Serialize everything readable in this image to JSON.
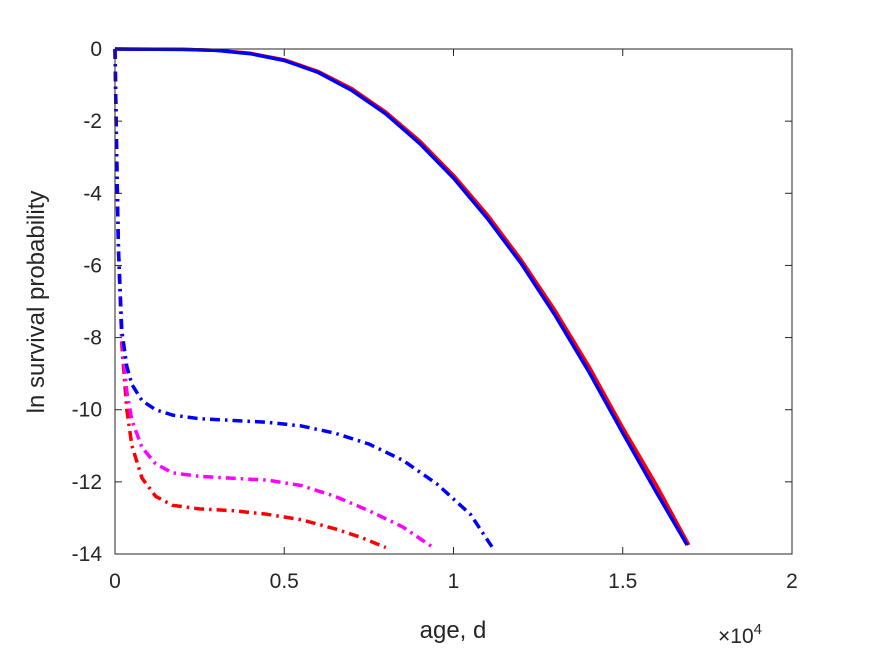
{
  "chart_data": {
    "type": "line",
    "xlabel": "age, d",
    "ylabel": "ln survival probability",
    "x_multiplier": {
      "base": "×10",
      "exponent": "4"
    },
    "xlim": [
      0,
      20000
    ],
    "ylim": [
      -14,
      0
    ],
    "xticks": [
      0,
      5000,
      10000,
      15000,
      20000
    ],
    "xtick_labels": [
      "0",
      "0.5",
      "1",
      "1.5",
      "2"
    ],
    "yticks": [
      0,
      -2,
      -4,
      -6,
      -8,
      -10,
      -12,
      -14
    ],
    "ytick_labels": [
      "0",
      "-2",
      "-4",
      "-6",
      "-8",
      "-10",
      "-12",
      "-14"
    ],
    "grid": false,
    "series": [
      {
        "color": "#ff0000",
        "style": "solid",
        "points": [
          [
            0,
            0
          ],
          [
            2000,
            -0.01
          ],
          [
            3000,
            -0.04
          ],
          [
            4000,
            -0.12
          ],
          [
            5000,
            -0.3
          ],
          [
            6000,
            -0.62
          ],
          [
            7000,
            -1.1
          ],
          [
            8000,
            -1.75
          ],
          [
            9000,
            -2.55
          ],
          [
            10000,
            -3.5
          ],
          [
            11000,
            -4.6
          ],
          [
            12000,
            -5.85
          ],
          [
            13000,
            -7.25
          ],
          [
            14000,
            -8.8
          ],
          [
            15000,
            -10.5
          ],
          [
            16000,
            -12.1
          ],
          [
            16950,
            -13.75
          ]
        ]
      },
      {
        "color": "#0000ff",
        "style": "solid",
        "points": [
          [
            0,
            0
          ],
          [
            2000,
            -0.01
          ],
          [
            3000,
            -0.04
          ],
          [
            4000,
            -0.13
          ],
          [
            5000,
            -0.32
          ],
          [
            6000,
            -0.65
          ],
          [
            7000,
            -1.15
          ],
          [
            8000,
            -1.8
          ],
          [
            9000,
            -2.62
          ],
          [
            10000,
            -3.58
          ],
          [
            11000,
            -4.7
          ],
          [
            12000,
            -5.95
          ],
          [
            13000,
            -7.38
          ],
          [
            14000,
            -8.95
          ],
          [
            15000,
            -10.65
          ],
          [
            16000,
            -12.3
          ],
          [
            16900,
            -13.75
          ]
        ]
      },
      {
        "color": "#ff0000",
        "style": "dashdot",
        "points": [
          [
            0,
            0
          ],
          [
            50,
            -3
          ],
          [
            100,
            -5.5
          ],
          [
            200,
            -8.2
          ],
          [
            350,
            -10
          ],
          [
            500,
            -11
          ],
          [
            800,
            -11.9
          ],
          [
            1200,
            -12.4
          ],
          [
            1700,
            -12.65
          ],
          [
            2500,
            -12.75
          ],
          [
            3500,
            -12.8
          ],
          [
            4500,
            -12.9
          ],
          [
            5500,
            -13.05
          ],
          [
            6500,
            -13.3
          ],
          [
            7300,
            -13.55
          ],
          [
            8000,
            -13.82
          ]
        ]
      },
      {
        "color": "#ff00ff",
        "style": "dashdot",
        "points": [
          [
            0,
            0
          ],
          [
            50,
            -3
          ],
          [
            100,
            -5.5
          ],
          [
            200,
            -8
          ],
          [
            350,
            -9.5
          ],
          [
            500,
            -10.3
          ],
          [
            800,
            -11.05
          ],
          [
            1200,
            -11.5
          ],
          [
            1700,
            -11.75
          ],
          [
            2500,
            -11.85
          ],
          [
            3500,
            -11.9
          ],
          [
            4500,
            -11.95
          ],
          [
            5500,
            -12.1
          ],
          [
            6500,
            -12.4
          ],
          [
            7500,
            -12.8
          ],
          [
            8500,
            -13.25
          ],
          [
            9400,
            -13.82
          ]
        ]
      },
      {
        "color": "#0000ff",
        "style": "dashdot",
        "points": [
          [
            0,
            0
          ],
          [
            50,
            -3
          ],
          [
            100,
            -5.5
          ],
          [
            200,
            -7.8
          ],
          [
            350,
            -8.8
          ],
          [
            500,
            -9.3
          ],
          [
            800,
            -9.75
          ],
          [
            1200,
            -10
          ],
          [
            1700,
            -10.15
          ],
          [
            2500,
            -10.25
          ],
          [
            3500,
            -10.3
          ],
          [
            4500,
            -10.35
          ],
          [
            5500,
            -10.45
          ],
          [
            6500,
            -10.65
          ],
          [
            7500,
            -10.95
          ],
          [
            8500,
            -11.4
          ],
          [
            9500,
            -12.05
          ],
          [
            10500,
            -12.9
          ],
          [
            11150,
            -13.82
          ]
        ]
      }
    ]
  }
}
